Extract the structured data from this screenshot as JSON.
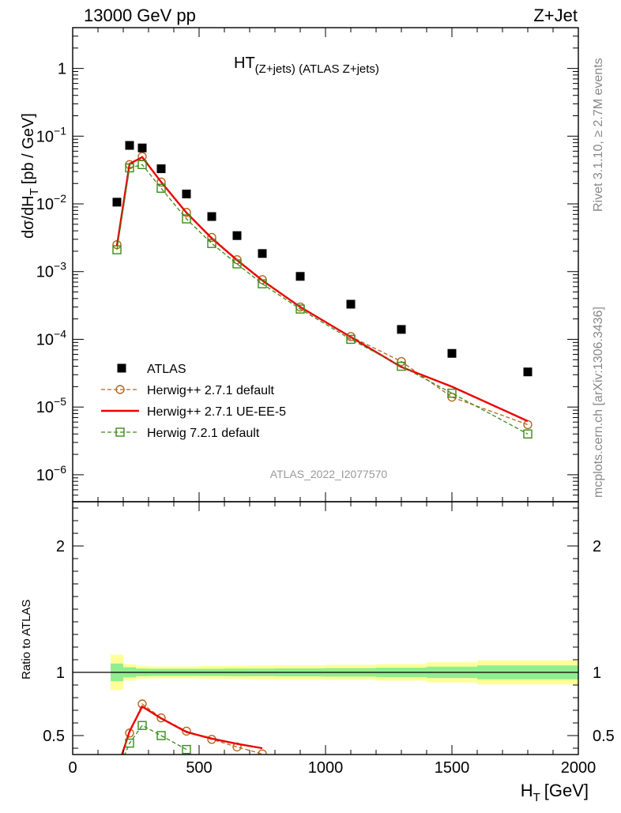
{
  "header": {
    "left": "13000 GeV pp",
    "right": "Z+Jet"
  },
  "side_labels": {
    "rivet": "Rivet 3.1.10, ≥ 2.7M events",
    "mcplots": "mcplots.cern.ch [arXiv:1306.3436]"
  },
  "chart_data": {
    "type": "line",
    "title": "HT(Z+jets) (ATLAS Z+jets)",
    "title_main": "HT",
    "title_sub": "(Z+jets) (ATLAS Z+jets)",
    "watermark": "ATLAS_2022_I2077570",
    "xlabel": "H_T [GeV]",
    "xlabel_main": "H",
    "xlabel_sub": "T",
    "xlabel_unit": "[GeV]",
    "ylabel": "dσ/dH_T [pb / GeV]",
    "ylabel_main": "dσ/dH",
    "ylabel_sub": "T",
    "ylabel_unit": "[pb / GeV]",
    "ratio_ylabel": "Ratio to ATLAS",
    "xlim": [
      0,
      2000
    ],
    "ylim": [
      4e-07,
      4
    ],
    "yscale": "log",
    "ratio_ylim": [
      0.35,
      2.35
    ],
    "x_ticks": [
      "0",
      "500",
      "1000",
      "1500",
      "2000"
    ],
    "x_tick_values": [
      0,
      500,
      1000,
      1500,
      2000
    ],
    "y_ticks": [
      {
        "v": 1,
        "base": "1",
        "exp": ""
      },
      {
        "v": 0.1,
        "base": "10",
        "exp": "−1"
      },
      {
        "v": 0.01,
        "base": "10",
        "exp": "−2"
      },
      {
        "v": 0.001,
        "base": "10",
        "exp": "−3"
      },
      {
        "v": 0.0001,
        "base": "10",
        "exp": "−4"
      },
      {
        "v": 1e-05,
        "base": "10",
        "exp": "−5"
      },
      {
        "v": 1e-06,
        "base": "10",
        "exp": "−6"
      }
    ],
    "ratio_ticks": [
      {
        "v": 0.5,
        "label": "0.5"
      },
      {
        "v": 1,
        "label": "1"
      },
      {
        "v": 2,
        "label": "2"
      }
    ],
    "series": [
      {
        "name": "ATLAS",
        "kind": "data",
        "color": "#000000",
        "x": [
          175,
          225,
          275,
          350,
          450,
          550,
          650,
          750,
          900,
          1100,
          1300,
          1500,
          1800
        ],
        "y": [
          0.0106,
          0.073,
          0.067,
          0.033,
          0.014,
          0.0065,
          0.0034,
          0.00185,
          0.00085,
          0.00033,
          0.00014,
          6.2e-05,
          3.3e-05
        ]
      },
      {
        "name": "Herwig++ 2.7.1 default",
        "kind": "mc-circle-dashed",
        "color": "#b5651d",
        "x": [
          175,
          225,
          275,
          350,
          450,
          550,
          650,
          750,
          900,
          1100,
          1300,
          1500,
          1800
        ],
        "y": [
          0.0025,
          0.038,
          0.05,
          0.021,
          0.0075,
          0.0032,
          0.0015,
          0.00076,
          0.0003,
          0.00011,
          4.7e-05,
          1.4e-05,
          5.5e-06
        ]
      },
      {
        "name": "Herwig++ 2.7.1 UE-EE-5",
        "kind": "mc-solid",
        "color": "#ee0000",
        "x": [
          175,
          225,
          275,
          350,
          450,
          550,
          650,
          750,
          900,
          1100,
          1300,
          1500,
          1800
        ],
        "y": [
          0.0024,
          0.039,
          0.049,
          0.021,
          0.0074,
          0.0031,
          0.00148,
          0.00074,
          0.0003,
          0.000108,
          3.9e-05,
          2e-05,
          6.2e-06
        ]
      },
      {
        "name": "Herwig 7.2.1 default",
        "kind": "mc-square-dashed",
        "color": "#3a8a1a",
        "x": [
          175,
          225,
          275,
          350,
          450,
          550,
          650,
          750,
          900,
          1100,
          1300,
          1500,
          1800
        ],
        "y": [
          0.0021,
          0.034,
          0.038,
          0.017,
          0.006,
          0.0026,
          0.0013,
          0.00066,
          0.00028,
          0.0001,
          4e-05,
          1.6e-05,
          4e-06
        ]
      }
    ],
    "ratio_series": [
      {
        "name": "Herwig++ 2.7.1 default",
        "color": "#b5651d",
        "x": [
          175,
          225,
          275,
          350,
          450,
          550,
          650,
          750
        ],
        "y": [
          0.236,
          0.52,
          0.75,
          0.64,
          0.535,
          0.47,
          0.41,
          0.355
        ]
      },
      {
        "name": "Herwig++ 2.7.1 UE-EE-5",
        "color": "#ee0000",
        "x": [
          175,
          225,
          275,
          350,
          450,
          550,
          650,
          750
        ],
        "y": [
          0.226,
          0.534,
          0.73,
          0.636,
          0.528,
          0.476,
          0.435,
          0.4
        ]
      },
      {
        "name": "Herwig 7.2.1 default",
        "color": "#3a8a1a",
        "x": [
          175,
          225,
          275,
          350,
          450
        ],
        "y": [
          0.2,
          0.44,
          0.58,
          0.5,
          0.39
        ]
      }
    ],
    "bands": [
      {
        "x0": 150,
        "x1": 200,
        "inner": [
          0.93,
          1.07
        ],
        "outer": [
          0.86,
          1.14
        ]
      },
      {
        "x0": 200,
        "x1": 250,
        "inner": [
          0.96,
          1.04
        ],
        "outer": [
          0.935,
          1.065
        ]
      },
      {
        "x0": 250,
        "x1": 300,
        "inner": [
          0.97,
          1.03
        ],
        "outer": [
          0.95,
          1.05
        ]
      },
      {
        "x0": 300,
        "x1": 400,
        "inner": [
          0.972,
          1.028
        ],
        "outer": [
          0.952,
          1.048
        ]
      },
      {
        "x0": 400,
        "x1": 500,
        "inner": [
          0.972,
          1.028
        ],
        "outer": [
          0.952,
          1.048
        ]
      },
      {
        "x0": 500,
        "x1": 600,
        "inner": [
          0.972,
          1.028
        ],
        "outer": [
          0.95,
          1.05
        ]
      },
      {
        "x0": 600,
        "x1": 700,
        "inner": [
          0.97,
          1.03
        ],
        "outer": [
          0.948,
          1.052
        ]
      },
      {
        "x0": 700,
        "x1": 800,
        "inner": [
          0.97,
          1.03
        ],
        "outer": [
          0.946,
          1.054
        ]
      },
      {
        "x0": 800,
        "x1": 1000,
        "inner": [
          0.968,
          1.032
        ],
        "outer": [
          0.944,
          1.056
        ]
      },
      {
        "x0": 1000,
        "x1": 1200,
        "inner": [
          0.966,
          1.034
        ],
        "outer": [
          0.94,
          1.06
        ]
      },
      {
        "x0": 1200,
        "x1": 1400,
        "inner": [
          0.963,
          1.037
        ],
        "outer": [
          0.935,
          1.065
        ]
      },
      {
        "x0": 1400,
        "x1": 1600,
        "inner": [
          0.955,
          1.045
        ],
        "outer": [
          0.92,
          1.08
        ]
      },
      {
        "x0": 1600,
        "x1": 2000,
        "inner": [
          0.945,
          1.055
        ],
        "outer": [
          0.905,
          1.095
        ]
      }
    ],
    "band_colors": {
      "inner": "#90ee90",
      "outer": "#ffff99"
    },
    "grid": false,
    "legend_position": "bottom-left"
  }
}
